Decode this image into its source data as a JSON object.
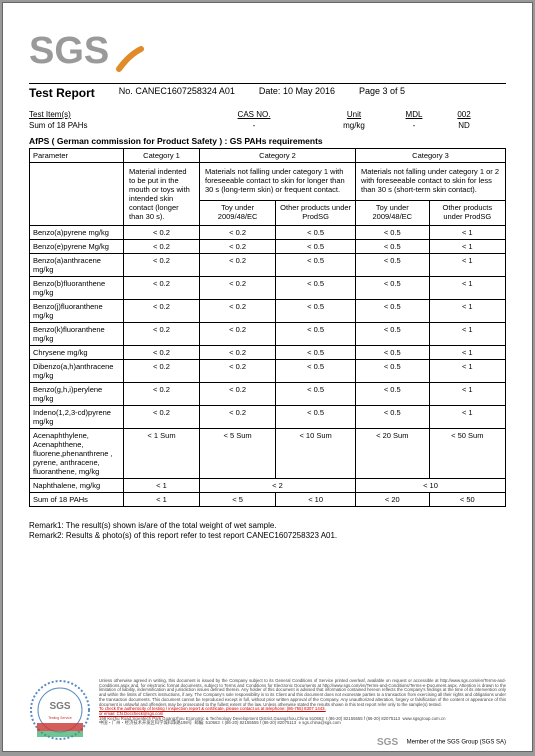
{
  "header": {
    "logo_text": "SGS",
    "logo_fill_main": "#9a9a9a",
    "logo_fill_orange": "#e08a2a",
    "title": "Test Report",
    "report_no_label": "No.",
    "report_no": "CANEC1607258324  A01",
    "date_label": "Date:",
    "date": "10 May 2016",
    "page": "Page 3 of 5"
  },
  "subheader": {
    "test_items_label": "Test Item(s)",
    "sum_label": "Sum of 18 PAHs",
    "cas_label": "CAS NO.",
    "unit_label": "Unit",
    "unit_value": "mg/kg",
    "mdl_label": "MDL",
    "mdl_value": "-",
    "res_label": "002",
    "res_value": "ND",
    "dash": "-"
  },
  "section_title": "AfPS ( German commission for Product Safety ) : GS PAHs requirements",
  "table": {
    "head": {
      "parameter": "Parameter",
      "cat1": "Category 1",
      "cat2": "Category 2",
      "cat3": "Category 3",
      "cat1_desc": "Material indented to be put in the mouth or toys with intended skin contact (longer than 30 s).",
      "cat2_desc": "Materials not falling under category 1 with foreseeable contact to skin for longer than 30 s (long-term skin) or frequent contact.",
      "cat3_desc": "Materials not falling under category 1 or 2 with foreseeable contact to skin for less than 30 s (short-term skin contact).",
      "sub_toy": "Toy under 2009/48/EC",
      "sub_other": "Other products under ProdSG",
      "sub_toy3": "Toy under  2009/48/EC",
      "sub_other3": "Other products under ProdSG"
    },
    "rows": [
      {
        "p": "Benzo(a)pyrene  mg/kg",
        "c1": "< 0.2",
        "c2a": "< 0.2",
        "c2b": "< 0.5",
        "c3a": "< 0.5",
        "c3b": "< 1"
      },
      {
        "p": "Benzo(e)pyrene Mg/kg",
        "c1": "< 0.2",
        "c2a": "< 0.2",
        "c2b": "< 0.5",
        "c3a": "< 0.5",
        "c3b": "< 1"
      },
      {
        "p": "Benzo(a)anthracene mg/kg",
        "c1": "< 0.2",
        "c2a": "< 0.2",
        "c2b": "< 0.5",
        "c3a": "< 0.5",
        "c3b": "< 1"
      },
      {
        "p": "Benzo(b)fluoranthene mg/kg",
        "c1": "< 0.2",
        "c2a": "< 0.2",
        "c2b": "< 0.5",
        "c3a": "< 0.5",
        "c3b": "< 1"
      },
      {
        "p": "Benzo(j)fluoranthene mg/kg",
        "c1": "< 0.2",
        "c2a": "< 0.2",
        "c2b": "< 0.5",
        "c3a": "< 0.5",
        "c3b": "< 1"
      },
      {
        "p": "Benzo(k)fluoranthene mg/kg",
        "c1": "< 0.2",
        "c2a": "< 0.2",
        "c2b": "< 0.5",
        "c3a": "< 0.5",
        "c3b": "< 1"
      },
      {
        "p": "Chrysene  mg/kg",
        "c1": "< 0.2",
        "c2a": "< 0.2",
        "c2b": "< 0.5",
        "c3a": "< 0.5",
        "c3b": "< 1"
      },
      {
        "p": "Dibenzo(a,h)anthracene mg/kg",
        "c1": "< 0.2",
        "c2a": "< 0.2",
        "c2b": "< 0.5",
        "c3a": "< 0.5",
        "c3b": "< 1"
      },
      {
        "p": "Benzo(g,h,i)perylene mg/kg",
        "c1": "< 0.2",
        "c2a": "< 0.2",
        "c2b": "< 0.5",
        "c3a": "< 0.5",
        "c3b": "< 1"
      },
      {
        "p": "Indeno(1,2,3-cd)pyrene mg/kg",
        "c1": "< 0.2",
        "c2a": "< 0.2",
        "c2b": "< 0.5",
        "c3a": "< 0.5",
        "c3b": "< 1"
      },
      {
        "p": "Acenaphthylene, Acenaphthene, fluorene,phenanthrene , pyrene, anthracene, fluoranthene, mg/kg",
        "c1": "< 1 Sum",
        "c2a": "< 5 Sum",
        "c2b": "< 10 Sum",
        "c3a": "< 20 Sum",
        "c3b": "< 50 Sum"
      }
    ],
    "span_rows": [
      {
        "p": "Naphthalene, mg/kg",
        "c1": "< 1",
        "c2": "< 2",
        "c3": "< 10"
      },
      {
        "p": "Sum of 18 PAHs",
        "c1": "< 1",
        "c2": "< 5",
        "c2b": "< 10",
        "c3": "< 20",
        "c3b": "< 50"
      }
    ]
  },
  "remarks": {
    "r1": "Remark1: The result(s) shown is/are of the total weight of wet sample.",
    "r2": "Remark2: Results & photo(s) of this report refer to test report CANEC1607258323 A01."
  },
  "footer": {
    "disclaimer": "Unless otherwise agreed in writing, this document is issued by the Company subject to its General Conditions of Service printed overleaf, available on request or accessible at http://www.sgs.com/en/Terms-and-Conditions.aspx and, for electronic format documents, subject to Terms and Conditions for Electronic Documents at http://www.sgs.com/en/Terms-and-Conditions/Terms-e-Document.aspx. Attention is drawn to the limitation of liability, indemnification and jurisdiction issues defined therein. Any holder of this document is advised that information contained hereon reflects the Company's findings at the time of its intervention only and within the limits of Client's instructions, if any. The Company's sole responsibility is to its Client and this document does not exonerate parties to a transaction from exercising all their rights and obligations under the transaction documents. This document cannot be reproduced except in full, without prior written approval of the Company. Any unauthorized alteration, forgery or falsification of the content or appearance of this document is unlawful and offenders may be prosecuted to the fullest extent of the law. Unless otherwise stated the results shown in this test report refer only to the sample(s) tested.",
    "contact_line": "To check the authenticity of testing / inspection report & certificate, please contact us at telephone: (86-755) 8307 1443,",
    "email_line": "or email: CN.Doccheck@sgs.com",
    "addr_cn": "中国・广州・经济技术开发区科学城科珠路198号",
    "addr_en": "198 Kezhu Road,Scientech Park Guangzhou Economic & Technology Development District,Guangzhou,China 510663",
    "phone": "t (86-20) 82155555  f (86-20) 82075113",
    "web": "www.sgsgroup.com.cn",
    "email2": "e sgs.china@sgs.com",
    "member": "Member of the SGS Group (SGS SA)"
  }
}
